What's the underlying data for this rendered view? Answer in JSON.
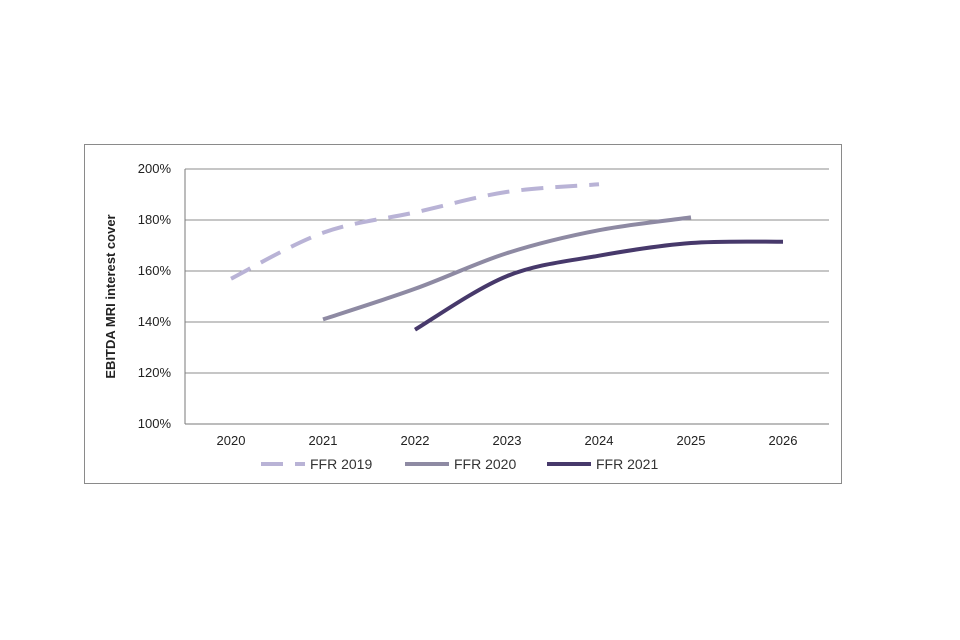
{
  "chart_data": {
    "type": "line",
    "title": "",
    "xlabel": "",
    "ylabel": "EBITDA MRI interest cover",
    "categories": [
      "2020",
      "2021",
      "2022",
      "2023",
      "2024",
      "2025",
      "2026"
    ],
    "y_ticks": [
      "100%",
      "120%",
      "140%",
      "160%",
      "180%",
      "200%"
    ],
    "ylim": [
      100,
      200
    ],
    "grid": true,
    "legend_position": "bottom",
    "series": [
      {
        "name": "FFR 2019",
        "color": "#b9b3d6",
        "style": "dashed",
        "values": [
          157,
          175,
          183,
          191,
          194,
          null,
          null
        ]
      },
      {
        "name": "FFR 2020",
        "color": "#8e8aa3",
        "style": "solid",
        "values": [
          null,
          141,
          153,
          167,
          176,
          181,
          null
        ]
      },
      {
        "name": "FFR 2021",
        "color": "#47396b",
        "style": "solid",
        "values": [
          null,
          null,
          137,
          158,
          166,
          171,
          171.5
        ]
      }
    ]
  }
}
